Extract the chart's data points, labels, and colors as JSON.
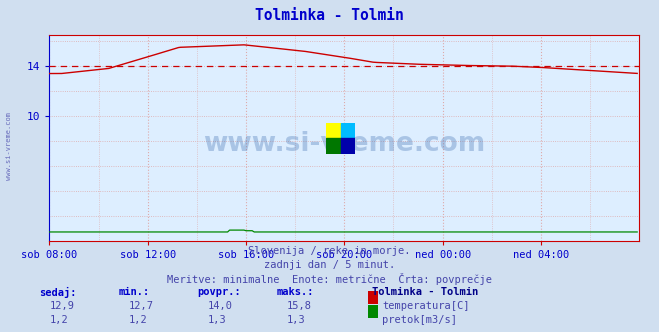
{
  "title": "Tolminka - Tolmin",
  "title_color": "#0000cc",
  "bg_color": "#d0dff0",
  "plot_bg_color": "#ddeeff",
  "grid_color_v": "#ddaaaa",
  "grid_color_h": "#ddaaaa",
  "x_labels": [
    "sob 08:00",
    "sob 12:00",
    "sob 16:00",
    "sob 20:00",
    "ned 00:00",
    "ned 04:00"
  ],
  "x_ticks_pos": [
    0,
    48,
    96,
    144,
    192,
    240
  ],
  "x_max": 288,
  "y_ticks_labeled": [
    10,
    14
  ],
  "y_ticks_all": [
    2,
    4,
    6,
    8,
    10,
    12,
    14,
    16
  ],
  "y_min": 0,
  "y_max": 16.5,
  "avg_line_y": 14.0,
  "avg_line_color": "#cc0000",
  "temp_color": "#cc0000",
  "flow_color": "#008800",
  "footer_line1": "Slovenija / reke in morje.",
  "footer_line2": "zadnji dan / 5 minut.",
  "footer_line3": "Meritve: minimalne  Enote: metrične  Črta: povprečje",
  "footer_color": "#4444aa",
  "table_headers": [
    "sedaj:",
    "min.:",
    "povpr.:",
    "maks.:"
  ],
  "table_header_color": "#0000cc",
  "table_values_color": "#4444aa",
  "table_temp_row": [
    "12,9",
    "12,7",
    "14,0",
    "15,8"
  ],
  "table_flow_row": [
    "1,2",
    "1,2",
    "1,3",
    "1,3"
  ],
  "legend_title": "Tolminka - Tolmin",
  "legend_color": "#000088",
  "watermark_text": "www.si-vreme.com",
  "watermark_color": "#3366aa",
  "watermark_alpha": 0.3,
  "axis_color": "#0000cc",
  "tick_label_color": "#0000cc",
  "spine_color": "#cc0000",
  "logo_colors": [
    "#ffff00",
    "#00bbff",
    "#007700",
    "#0000aa"
  ]
}
